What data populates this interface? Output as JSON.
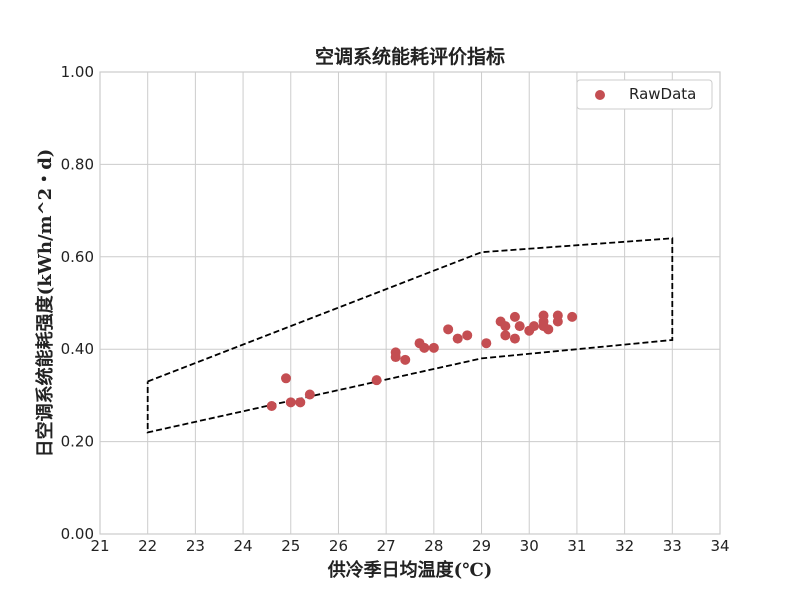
{
  "chart_data": {
    "type": "scatter",
    "title": "空调系统能耗评价指标",
    "xlabel": "供冷季日均温度(℃)",
    "ylabel": "日空调系统能耗强度(kWh/m^2・d)",
    "xlim": [
      21,
      34
    ],
    "ylim": [
      0.0,
      1.0
    ],
    "x_ticks": [
      "21",
      "22",
      "23",
      "24",
      "25",
      "26",
      "27",
      "28",
      "29",
      "30",
      "31",
      "32",
      "33",
      "34"
    ],
    "y_ticks": [
      "0.00",
      "0.20",
      "0.40",
      "0.60",
      "0.80",
      "1.00"
    ],
    "grid": true,
    "legend_position": "top-right",
    "series": [
      {
        "name": "RawData",
        "color": "#c44e52",
        "points": [
          [
            24.6,
            0.277
          ],
          [
            24.9,
            0.337
          ],
          [
            25.0,
            0.285
          ],
          [
            25.2,
            0.285
          ],
          [
            25.4,
            0.302
          ],
          [
            26.8,
            0.333
          ],
          [
            27.2,
            0.383
          ],
          [
            27.2,
            0.393
          ],
          [
            27.4,
            0.377
          ],
          [
            27.7,
            0.413
          ],
          [
            27.8,
            0.403
          ],
          [
            28.0,
            0.403
          ],
          [
            28.3,
            0.443
          ],
          [
            28.5,
            0.423
          ],
          [
            28.7,
            0.43
          ],
          [
            29.1,
            0.413
          ],
          [
            29.4,
            0.46
          ],
          [
            29.5,
            0.43
          ],
          [
            29.5,
            0.45
          ],
          [
            29.7,
            0.423
          ],
          [
            29.7,
            0.47
          ],
          [
            29.8,
            0.45
          ],
          [
            30.0,
            0.44
          ],
          [
            30.1,
            0.45
          ],
          [
            30.3,
            0.473
          ],
          [
            30.3,
            0.46
          ],
          [
            30.3,
            0.45
          ],
          [
            30.4,
            0.443
          ],
          [
            30.6,
            0.473
          ],
          [
            30.6,
            0.46
          ],
          [
            30.9,
            0.47
          ]
        ]
      }
    ],
    "boundary": {
      "color": "#000000",
      "style": "dashed",
      "points": [
        [
          22,
          0.33
        ],
        [
          29,
          0.61
        ],
        [
          33,
          0.64
        ],
        [
          33,
          0.42
        ],
        [
          29,
          0.38
        ],
        [
          22,
          0.22
        ],
        [
          22,
          0.33
        ]
      ]
    }
  }
}
